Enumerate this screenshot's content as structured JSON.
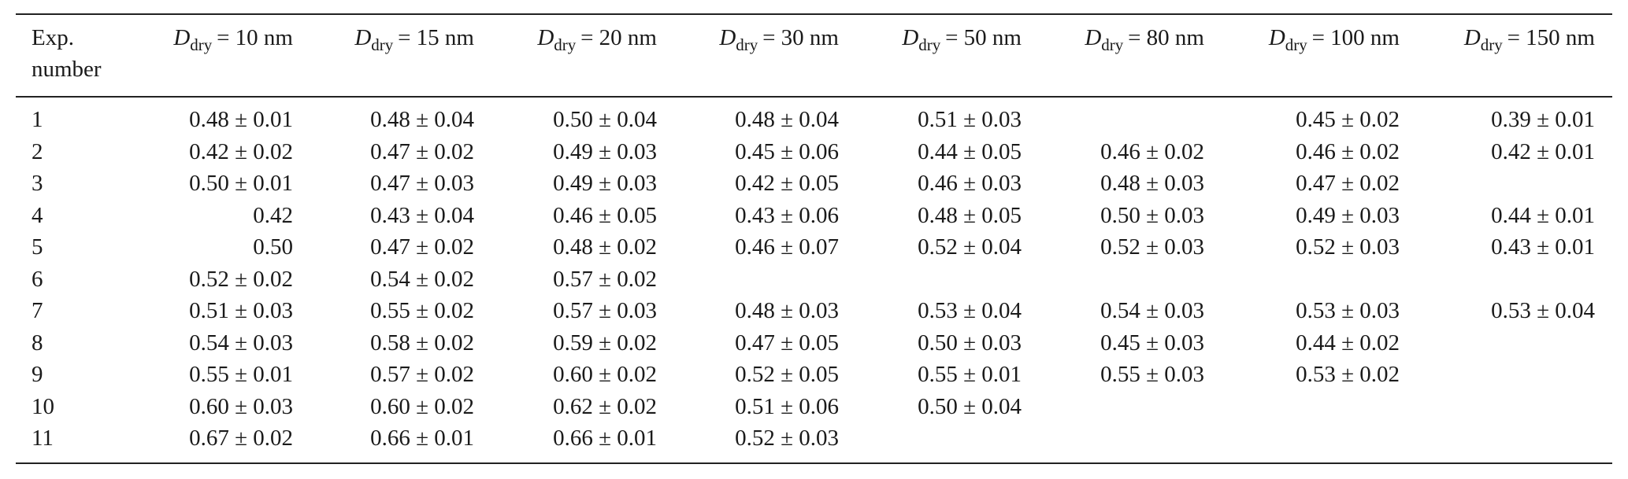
{
  "table": {
    "header": [
      {
        "lines": [
          "Exp.",
          "number"
        ]
      },
      {
        "symbol": "D",
        "subscript": "dry",
        "text": "= 10 nm"
      },
      {
        "symbol": "D",
        "subscript": "dry",
        "text": "= 15 nm"
      },
      {
        "symbol": "D",
        "subscript": "dry",
        "text": "= 20 nm"
      },
      {
        "symbol": "D",
        "subscript": "dry",
        "text": "= 30 nm"
      },
      {
        "symbol": "D",
        "subscript": "dry",
        "text": "= 50 nm"
      },
      {
        "symbol": "D",
        "subscript": "dry",
        "text": "= 80 nm"
      },
      {
        "symbol": "D",
        "subscript": "dry",
        "text": "= 100 nm"
      },
      {
        "symbol": "D",
        "subscript": "dry",
        "text": "= 150 nm"
      }
    ],
    "rows": [
      [
        "1",
        "0.48 ± 0.01",
        "0.48 ± 0.04",
        "0.50 ± 0.04",
        "0.48 ± 0.04",
        "0.51 ± 0.03",
        null,
        "0.45 ± 0.02",
        "0.39 ± 0.01"
      ],
      [
        "2",
        "0.42 ± 0.02",
        "0.47 ± 0.02",
        "0.49 ± 0.03",
        "0.45 ± 0.06",
        "0.44 ± 0.05",
        "0.46 ± 0.02",
        "0.46 ± 0.02",
        "0.42 ± 0.01"
      ],
      [
        "3",
        "0.50 ± 0.01",
        "0.47 ± 0.03",
        "0.49 ± 0.03",
        "0.42 ± 0.05",
        "0.46 ± 0.03",
        "0.48 ± 0.03",
        "0.47 ± 0.02",
        null
      ],
      [
        "4",
        "0.42",
        "0.43 ± 0.04",
        "0.46 ± 0.05",
        "0.43 ± 0.06",
        "0.48 ± 0.05",
        "0.50 ± 0.03",
        "0.49 ± 0.03",
        "0.44 ± 0.01"
      ],
      [
        "5",
        "0.50",
        "0.47 ± 0.02",
        "0.48 ± 0.02",
        "0.46 ± 0.07",
        "0.52 ± 0.04",
        "0.52 ± 0.03",
        "0.52 ± 0.03",
        "0.43 ± 0.01"
      ],
      [
        "6",
        "0.52 ± 0.02",
        "0.54 ± 0.02",
        "0.57 ± 0.02",
        null,
        null,
        null,
        null,
        null
      ],
      [
        "7",
        "0.51 ± 0.03",
        "0.55 ± 0.02",
        "0.57 ± 0.03",
        "0.48 ± 0.03",
        "0.53 ± 0.04",
        "0.54 ± 0.03",
        "0.53 ± 0.03",
        "0.53 ± 0.04"
      ],
      [
        "8",
        "0.54 ± 0.03",
        "0.58 ± 0.02",
        "0.59 ± 0.02",
        "0.47 ± 0.05",
        "0.50 ± 0.03",
        "0.45 ± 0.03",
        "0.44 ± 0.02",
        null
      ],
      [
        "9",
        "0.55 ± 0.01",
        "0.57 ± 0.02",
        "0.60 ± 0.02",
        "0.52 ± 0.05",
        "0.55 ± 0.01",
        "0.55 ± 0.03",
        "0.53 ± 0.02",
        null
      ],
      [
        "10",
        "0.60 ± 0.03",
        "0.60 ± 0.02",
        "0.62 ± 0.02",
        "0.51 ± 0.06",
        "0.50 ± 0.04",
        null,
        null,
        null
      ],
      [
        "11",
        "0.67 ± 0.02",
        "0.66 ± 0.01",
        "0.66 ± 0.01",
        "0.52 ± 0.03",
        null,
        null,
        null,
        null
      ]
    ]
  }
}
